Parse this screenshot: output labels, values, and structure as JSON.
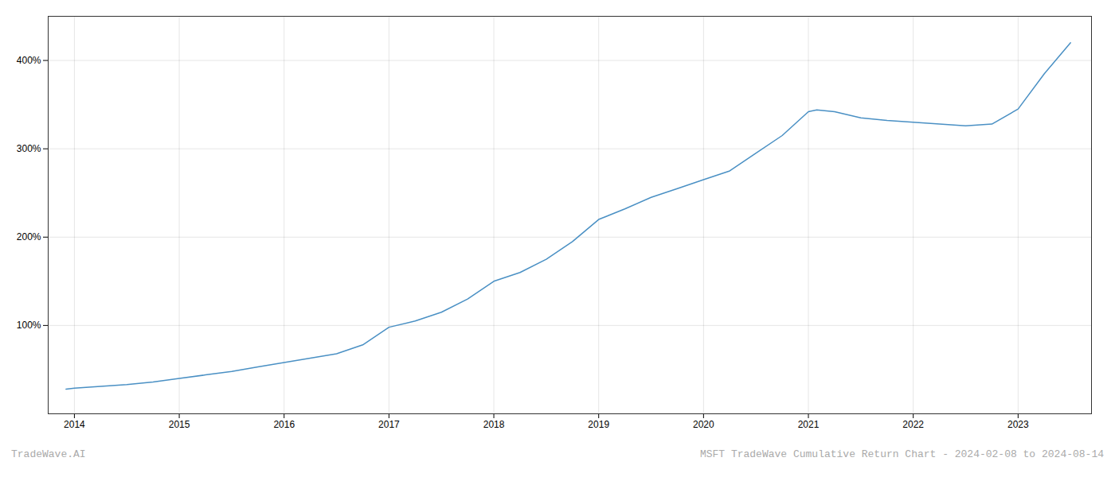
{
  "chart_data": {
    "type": "line",
    "title": "MSFT TradeWave Cumulative Return Chart - 2024-02-08 to 2024-08-14",
    "annotations": [
      "TradeWave.AI"
    ],
    "x": [
      2013.92,
      2014.0,
      2014.25,
      2014.5,
      2014.75,
      2015.0,
      2015.25,
      2015.5,
      2015.75,
      2016.0,
      2016.25,
      2016.5,
      2016.75,
      2017.0,
      2017.25,
      2017.5,
      2017.75,
      2018.0,
      2018.25,
      2018.5,
      2018.75,
      2019.0,
      2019.25,
      2019.5,
      2019.75,
      2020.0,
      2020.25,
      2020.5,
      2020.75,
      2021.0,
      2021.08,
      2021.25,
      2021.5,
      2021.75,
      2022.0,
      2022.25,
      2022.5,
      2022.75,
      2023.0,
      2023.25,
      2023.5
    ],
    "values": [
      28,
      29,
      31,
      33,
      36,
      40,
      44,
      48,
      53,
      58,
      63,
      68,
      78,
      98,
      105,
      115,
      130,
      150,
      160,
      175,
      195,
      220,
      232,
      245,
      255,
      265,
      275,
      295,
      315,
      342,
      344,
      342,
      335,
      332,
      330,
      328,
      326,
      328,
      345,
      385,
      420
    ],
    "color": "#4a90c4",
    "xlim": [
      2013.75,
      2023.7
    ],
    "xticks": [
      2014,
      2015,
      2016,
      2017,
      2018,
      2019,
      2020,
      2021,
      2022,
      2023
    ],
    "ylim": [
      0,
      450
    ],
    "yticks": [
      {
        "value": 100,
        "label": "100%"
      },
      {
        "value": 200,
        "label": "200%"
      },
      {
        "value": 300,
        "label": "300%"
      },
      {
        "value": 400,
        "label": "400%"
      }
    ],
    "grid": true
  }
}
